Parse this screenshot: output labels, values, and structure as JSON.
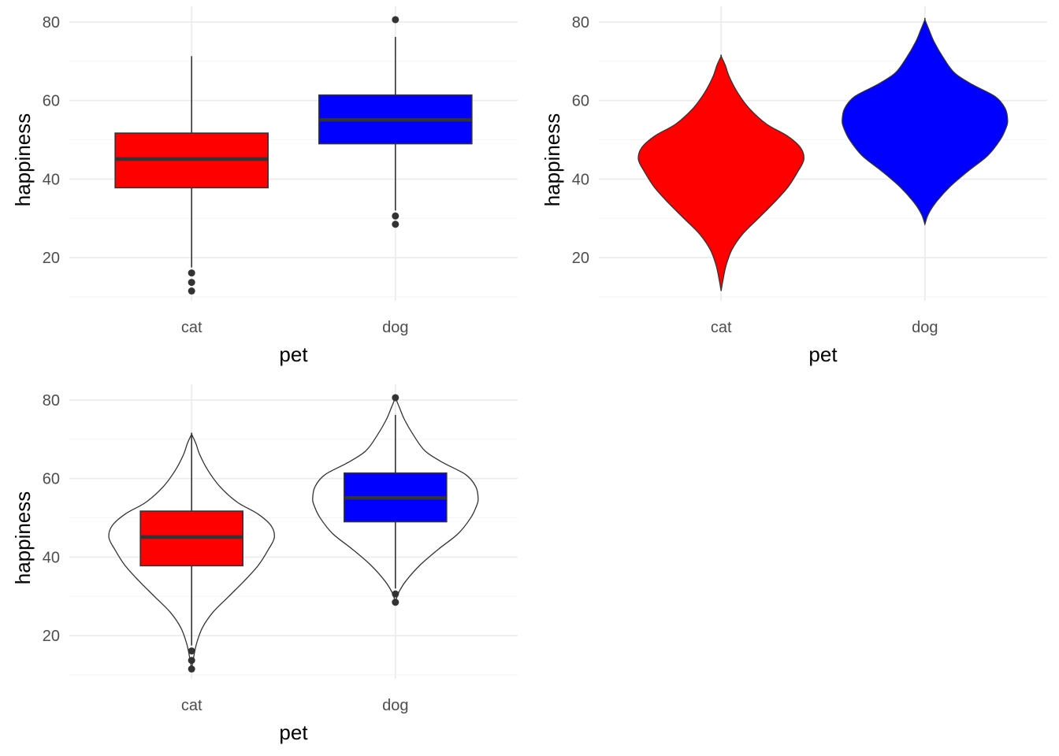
{
  "colors": {
    "cat": "#ff0000",
    "dog": "#0000ff",
    "outline": "#333333",
    "grid": "#ebebeb"
  },
  "axes": {
    "xlabel": "pet",
    "ylabel": "happiness",
    "ylim": [
      9,
      84
    ],
    "yticks": [
      20,
      40,
      60,
      80
    ],
    "categories": [
      "cat",
      "dog"
    ]
  },
  "chart_data": [
    {
      "type": "box",
      "xlabel": "pet",
      "ylabel": "happiness",
      "categories": [
        "cat",
        "dog"
      ],
      "ylim": [
        9,
        84
      ],
      "grid": true,
      "series": [
        {
          "name": "cat",
          "q1": 37.8,
          "median": 45.1,
          "q3": 51.7,
          "whisker_low": 17.5,
          "whisker_high": 71.3,
          "outliers": [
            16.1,
            13.7,
            11.5
          ]
        },
        {
          "name": "dog",
          "q1": 49.0,
          "median": 55.1,
          "q3": 61.4,
          "whisker_low": 32.0,
          "whisker_high": 76.2,
          "outliers": [
            80.6,
            30.6,
            28.5
          ]
        }
      ]
    },
    {
      "type": "violin",
      "xlabel": "pet",
      "ylabel": "happiness",
      "categories": [
        "cat",
        "dog"
      ],
      "ylim": [
        9,
        84
      ],
      "grid": true,
      "series": [
        {
          "name": "cat",
          "min": 11.5,
          "max": 71.3,
          "density": [
            [
              11.5,
              0.0
            ],
            [
              14,
              0.02
            ],
            [
              18,
              0.06
            ],
            [
              22,
              0.13
            ],
            [
              26,
              0.26
            ],
            [
              30,
              0.45
            ],
            [
              34,
              0.64
            ],
            [
              38,
              0.81
            ],
            [
              42,
              0.93
            ],
            [
              45,
              1.0
            ],
            [
              48,
              0.96
            ],
            [
              51,
              0.8
            ],
            [
              54,
              0.55
            ],
            [
              58,
              0.34
            ],
            [
              62,
              0.2
            ],
            [
              66,
              0.1
            ],
            [
              69,
              0.05
            ],
            [
              71.3,
              0.0
            ]
          ]
        },
        {
          "name": "dog",
          "min": 28.5,
          "max": 80.6,
          "density": [
            [
              28.5,
              0.0
            ],
            [
              31,
              0.04
            ],
            [
              34,
              0.13
            ],
            [
              38,
              0.3
            ],
            [
              42,
              0.52
            ],
            [
              46,
              0.76
            ],
            [
              50,
              0.91
            ],
            [
              53,
              0.98
            ],
            [
              55,
              1.0
            ],
            [
              58,
              0.97
            ],
            [
              61,
              0.85
            ],
            [
              64,
              0.58
            ],
            [
              67,
              0.36
            ],
            [
              71,
              0.22
            ],
            [
              75,
              0.11
            ],
            [
              78,
              0.05
            ],
            [
              80.6,
              0.0
            ]
          ]
        }
      ]
    },
    {
      "type": "violin+box",
      "xlabel": "pet",
      "ylabel": "happiness",
      "categories": [
        "cat",
        "dog"
      ],
      "ylim": [
        9,
        84
      ],
      "grid": true,
      "series": [
        {
          "name": "cat"
        },
        {
          "name": "dog"
        }
      ]
    }
  ]
}
